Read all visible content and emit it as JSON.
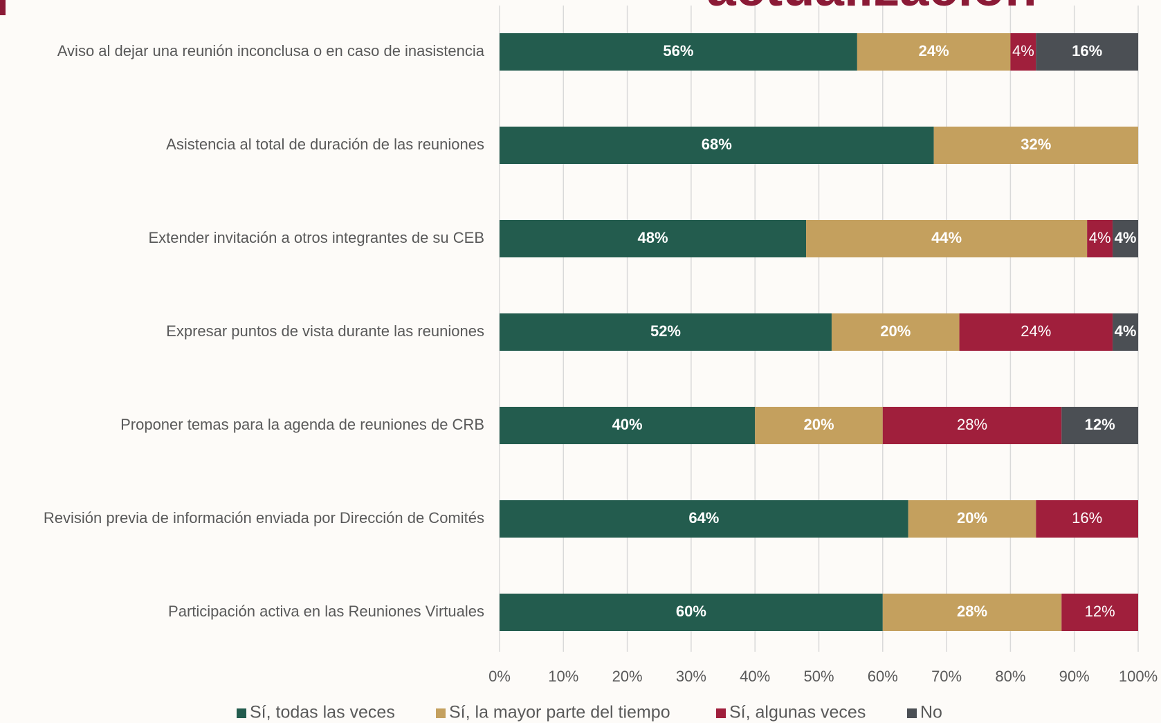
{
  "chart_data": {
    "type": "stacked-barh",
    "title": "actualización",
    "categories": [
      "Aviso al dejar una reunión inconclusa o en caso de inasistencia",
      "Asistencia al total de duración de las reuniones",
      "Extender invitación a otros integrantes de su CEB",
      "Expresar puntos de vista durante las reuniones",
      "Proponer temas para la agenda de reuniones de CRB",
      "Revisión previa de información enviada por Dirección de Comités",
      "Participación activa en las Reuniones Virtuales"
    ],
    "series": [
      {
        "name": "Sí, todas las veces",
        "color": "#235c4e",
        "values": [
          56,
          68,
          48,
          52,
          40,
          64,
          60
        ],
        "value_labels": [
          "56%",
          "68%",
          "48%",
          "52%",
          "40%",
          "64%",
          "60%"
        ]
      },
      {
        "name": "Sí, la mayor parte del tiempo",
        "color": "#c4a05e",
        "values": [
          24,
          32,
          44,
          20,
          20,
          20,
          28
        ],
        "value_labels": [
          "24%",
          "32%",
          "44%",
          "20%",
          "20%",
          "20%",
          "28%"
        ]
      },
      {
        "name": "Sí, algunas veces",
        "color": "#a01f3c",
        "values": [
          4,
          null,
          4,
          24,
          28,
          16,
          12
        ],
        "value_labels": [
          "4%",
          null,
          "4%",
          "24%",
          "28%",
          "16%",
          "12%"
        ]
      },
      {
        "name": "No",
        "color": "#4b4f54",
        "values": [
          16,
          null,
          4,
          4,
          12,
          null,
          null
        ],
        "value_labels": [
          "16%",
          null,
          "4%",
          "4%",
          "12%",
          null,
          null
        ]
      }
    ],
    "xlim": [
      0,
      100
    ],
    "xticks": [
      {
        "value": 0,
        "label": "0%"
      },
      {
        "value": 10,
        "label": "10%"
      },
      {
        "value": 20,
        "label": "20%"
      },
      {
        "value": 30,
        "label": "30%"
      },
      {
        "value": 40,
        "label": "40%"
      },
      {
        "value": 50,
        "label": "50%"
      },
      {
        "value": 60,
        "label": "60%"
      },
      {
        "value": 70,
        "label": "70%"
      },
      {
        "value": 80,
        "label": "80%"
      },
      {
        "value": 90,
        "label": "90%"
      },
      {
        "value": 100,
        "label": "100%"
      }
    ],
    "grid": true,
    "legend": "bottom"
  }
}
